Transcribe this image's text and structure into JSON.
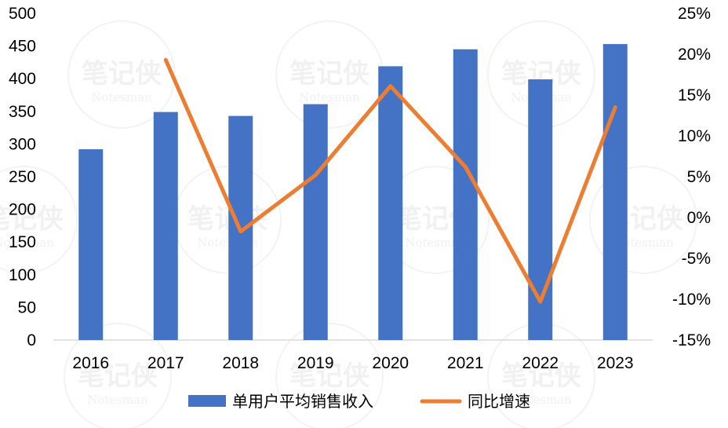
{
  "chart_data": {
    "type": "bar+line",
    "categories": [
      "2016",
      "2017",
      "2018",
      "2019",
      "2020",
      "2021",
      "2022",
      "2023"
    ],
    "series": [
      {
        "name": "单用户平均销售收入",
        "type": "bar",
        "axis": "left",
        "color": "#4472C4",
        "values": [
          292,
          349,
          343,
          361,
          419,
          445,
          399,
          453
        ]
      },
      {
        "name": "同比增速",
        "type": "line",
        "axis": "right",
        "color": "#ED7D31",
        "values": [
          null,
          19.3,
          -1.7,
          5.2,
          16.1,
          6.2,
          -10.3,
          13.5
        ]
      }
    ],
    "y_left": {
      "min": 0,
      "max": 500,
      "step": 50,
      "tick_labels": [
        "0",
        "50",
        "100",
        "150",
        "200",
        "250",
        "300",
        "350",
        "400",
        "450",
        "500"
      ]
    },
    "y_right": {
      "min": -15,
      "max": 25,
      "step": 5,
      "tick_labels": [
        "-15%",
        "-10%",
        "-5%",
        "0%",
        "5%",
        "10%",
        "15%",
        "20%",
        "25%"
      ]
    },
    "grid": false,
    "legend": {
      "position": "bottom",
      "entries": [
        "单用户平均销售收入",
        "同比增速"
      ]
    }
  },
  "watermark": {
    "text": "笔记侠",
    "subtext": "Notesman"
  }
}
